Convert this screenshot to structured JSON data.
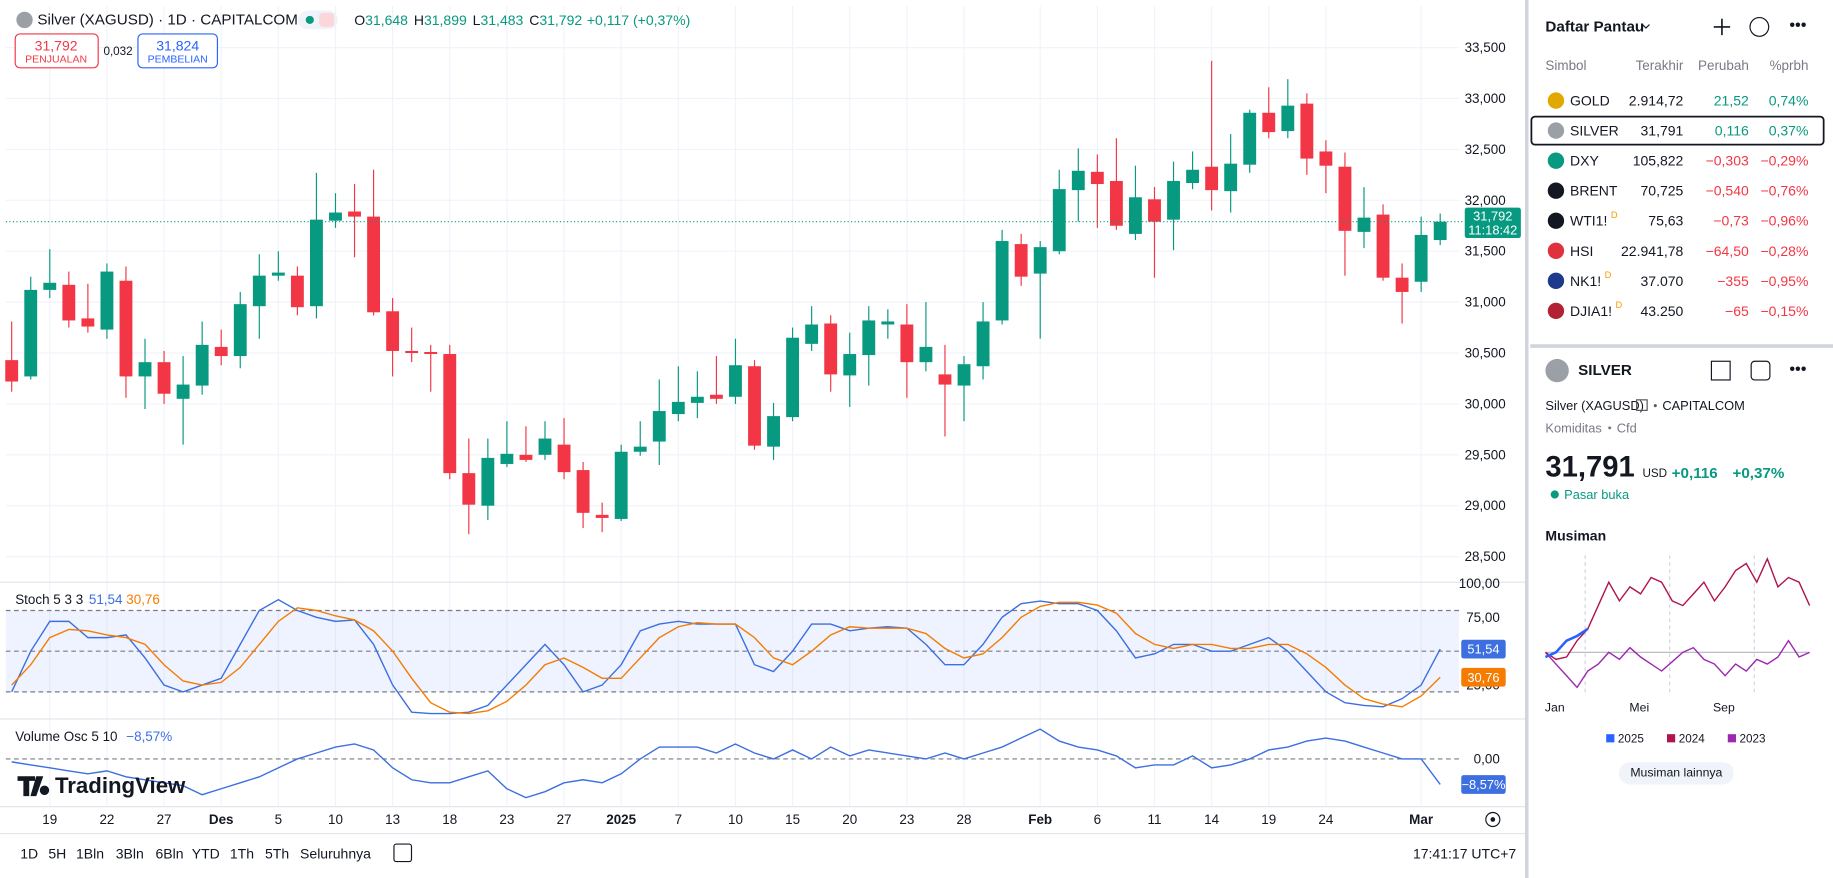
{
  "header": {
    "title": "Silver (XAGUSD) · 1D · CAPITALCOM",
    "ohlc": [
      {
        "label": "O",
        "value": "31,648"
      },
      {
        "label": "H",
        "value": "31,899"
      },
      {
        "label": "L",
        "value": "31,483"
      },
      {
        "label": "C",
        "value": "31,792"
      }
    ],
    "change": "+0,117 (+0,37%)",
    "sell": {
      "price": "31,792",
      "label": "PENJUALAN"
    },
    "spread": "0,032",
    "buy": {
      "price": "31,824",
      "label": "PEMBELIAN"
    },
    "countdown": "11:18:42"
  },
  "chart_data": [
    {
      "type": "candlestick",
      "up_color": "#089981",
      "down_color": "#f23645",
      "grid": true,
      "categories": [
        null,
        null,
        "19",
        null,
        null,
        "22",
        null,
        null,
        "27",
        null,
        null,
        "Des",
        null,
        null,
        "5",
        null,
        null,
        "10",
        null,
        null,
        "13",
        null,
        null,
        "18",
        null,
        null,
        "23",
        null,
        null,
        "27",
        null,
        null,
        "2025",
        null,
        null,
        "7",
        null,
        null,
        "10",
        null,
        null,
        "15",
        null,
        null,
        "20",
        null,
        null,
        "23",
        null,
        null,
        "28",
        null,
        null,
        null,
        "Feb",
        null,
        null,
        "6",
        null,
        null,
        "11",
        null,
        null,
        "14",
        null,
        null,
        "19",
        null,
        null,
        "24",
        null,
        null,
        null,
        null,
        "Mar",
        null
      ],
      "open": [
        30.43,
        30.27,
        31.12,
        31.17,
        30.84,
        30.73,
        31.21,
        30.27,
        30.41,
        30.05,
        30.18,
        30.56,
        30.47,
        30.96,
        31.26,
        31.26,
        30.96,
        31.8,
        31.89,
        31.84,
        30.91,
        30.52,
        30.51,
        30.49,
        29.32,
        29.0,
        29.41,
        29.5,
        29.5,
        29.6,
        29.35,
        28.91,
        28.87,
        29.53,
        29.63,
        29.9,
        30.01,
        30.09,
        30.07,
        30.37,
        29.58,
        29.87,
        30.59,
        30.79,
        30.28,
        30.48,
        30.78,
        30.78,
        30.41,
        30.29,
        30.18,
        30.37,
        30.82,
        31.57,
        31.28,
        31.5,
        32.1,
        32.28,
        32.19,
        31.67,
        32.01,
        31.81,
        32.17,
        32.33,
        32.09,
        32.35,
        32.86,
        32.68,
        32.95,
        32.48,
        32.33,
        31.69,
        31.86,
        31.24,
        31.2,
        31.61
      ],
      "high": [
        30.81,
        31.25,
        31.52,
        31.3,
        31.18,
        31.38,
        31.35,
        30.64,
        30.52,
        30.47,
        30.81,
        30.73,
        31.1,
        31.47,
        31.5,
        31.35,
        32.27,
        32.07,
        32.16,
        32.3,
        31.04,
        30.75,
        30.58,
        30.58,
        29.66,
        29.66,
        29.83,
        29.78,
        29.83,
        29.86,
        29.43,
        29.03,
        29.6,
        29.83,
        30.24,
        30.37,
        30.32,
        30.47,
        30.64,
        30.43,
        30.01,
        30.75,
        30.96,
        30.87,
        30.7,
        30.96,
        30.93,
        30.98,
        31.0,
        30.58,
        30.47,
        31.0,
        31.71,
        31.67,
        31.6,
        32.3,
        32.51,
        32.45,
        32.61,
        32.34,
        32.13,
        32.38,
        32.48,
        33.37,
        32.65,
        32.89,
        33.11,
        33.19,
        33.05,
        32.59,
        32.47,
        32.13,
        31.96,
        31.38,
        31.84,
        31.87
      ],
      "low": [
        30.12,
        30.24,
        31.04,
        30.75,
        30.7,
        30.64,
        30.06,
        29.95,
        30.0,
        29.6,
        30.09,
        30.38,
        30.35,
        30.64,
        31.21,
        30.87,
        30.84,
        31.73,
        31.44,
        30.87,
        30.27,
        30.41,
        30.12,
        29.26,
        28.72,
        28.86,
        29.38,
        29.43,
        29.45,
        29.26,
        28.78,
        28.74,
        28.85,
        29.49,
        29.4,
        29.83,
        29.86,
        30.0,
        30.0,
        29.55,
        29.45,
        29.83,
        30.52,
        30.12,
        29.97,
        30.18,
        30.64,
        30.06,
        30.32,
        29.68,
        29.83,
        30.24,
        30.78,
        31.16,
        30.64,
        31.47,
        31.79,
        31.73,
        31.71,
        31.61,
        31.24,
        31.51,
        32.11,
        31.9,
        31.88,
        32.27,
        32.61,
        32.61,
        32.25,
        32.07,
        31.26,
        31.53,
        31.21,
        30.79,
        31.1,
        31.56
      ],
      "close": [
        30.22,
        31.12,
        31.19,
        30.82,
        30.76,
        31.3,
        30.27,
        30.41,
        30.1,
        30.19,
        30.58,
        30.47,
        30.98,
        31.26,
        31.29,
        30.95,
        31.81,
        31.88,
        31.84,
        30.9,
        30.52,
        30.5,
        30.49,
        29.32,
        29.01,
        29.47,
        29.51,
        29.45,
        29.66,
        29.33,
        28.93,
        28.88,
        29.53,
        29.58,
        29.93,
        30.02,
        30.07,
        30.05,
        30.38,
        29.59,
        29.88,
        30.65,
        30.78,
        30.29,
        30.49,
        30.82,
        30.81,
        30.41,
        30.56,
        30.19,
        30.39,
        30.81,
        31.6,
        31.25,
        31.54,
        32.11,
        32.29,
        32.16,
        31.75,
        32.03,
        31.79,
        32.19,
        32.3,
        32.1,
        32.36,
        32.86,
        32.67,
        32.93,
        32.41,
        32.34,
        31.7,
        31.83,
        31.24,
        31.1,
        31.66,
        31.79
      ],
      "ylim": [
        28.26,
        33.91
      ],
      "yticks": [
        {
          "value": 28.5,
          "label": "28,500"
        },
        {
          "value": 29,
          "label": "29,000"
        },
        {
          "value": 29.5,
          "label": "29,500"
        },
        {
          "value": 30,
          "label": "30,000"
        },
        {
          "value": 30.5,
          "label": "30,500"
        },
        {
          "value": 31,
          "label": "31,000"
        },
        {
          "value": 31.5,
          "label": "31,500"
        },
        {
          "value": 32,
          "label": "32,000"
        },
        {
          "value": 32.5,
          "label": "32,500"
        },
        {
          "value": 33,
          "label": "33,000"
        },
        {
          "value": 33.5,
          "label": "33,500"
        }
      ]
    },
    {
      "type": "line",
      "title": "Stoch 5 3 3",
      "band_color": "#2962ff",
      "levels": [
        80,
        50,
        20
      ],
      "series": [
        {
          "color": "#3d6fe0",
          "last_label": "51,54",
          "values": [
            20,
            50,
            72,
            72,
            60,
            60,
            62,
            45,
            25,
            20,
            25,
            30,
            55,
            80,
            88,
            80,
            75,
            72,
            73,
            55,
            25,
            5,
            4,
            4,
            5,
            10,
            25,
            40,
            55,
            40,
            20,
            25,
            40,
            65,
            70,
            72,
            70,
            70,
            70,
            40,
            35,
            50,
            70,
            70,
            65,
            67,
            68,
            67,
            55,
            40,
            40,
            55,
            75,
            85,
            87,
            85,
            85,
            80,
            65,
            45,
            48,
            55,
            55,
            50,
            50,
            55,
            60,
            50,
            35,
            20,
            12,
            10,
            9,
            15,
            25,
            51.54
          ]
        },
        {
          "color": "#f57c00",
          "last_label": "30,76",
          "values": [
            25,
            40,
            60,
            66,
            65,
            62,
            60,
            55,
            40,
            28,
            25,
            27,
            38,
            55,
            72,
            82,
            80,
            76,
            73,
            65,
            50,
            30,
            12,
            5,
            4,
            6,
            13,
            25,
            40,
            45,
            38,
            30,
            30,
            45,
            60,
            68,
            71,
            70,
            70,
            60,
            45,
            40,
            50,
            62,
            68,
            67,
            67,
            67,
            63,
            52,
            45,
            48,
            60,
            75,
            83,
            86,
            86,
            84,
            78,
            63,
            55,
            52,
            55,
            55,
            52,
            52,
            55,
            55,
            48,
            38,
            25,
            15,
            11,
            9,
            17,
            30.76
          ]
        }
      ],
      "ylim": [
        0,
        100
      ],
      "yticks": [
        {
          "value": 100,
          "label": "100,00"
        },
        {
          "value": 75,
          "label": "75,00"
        },
        {
          "value": 25,
          "label": "25,00"
        }
      ]
    },
    {
      "type": "line",
      "title": "Volume Osc 5 10",
      "series": [
        {
          "color": "#3d6fe0",
          "last_label": "−8,57%",
          "values": [
            -1,
            -2,
            -3,
            -4,
            -5,
            -4,
            -6,
            -7,
            -8,
            -9,
            -12,
            -10,
            -8,
            -6,
            -3,
            0,
            2,
            4,
            5,
            3,
            -3,
            -7,
            -8,
            -8,
            -6,
            -4,
            -10,
            -13,
            -11,
            -8,
            -7,
            -8,
            -5,
            0,
            4,
            4,
            4,
            2,
            5,
            2,
            0,
            3,
            0,
            4,
            1,
            3,
            2,
            1,
            0,
            2,
            0,
            2,
            4,
            7,
            10,
            6,
            4,
            3,
            1,
            -3,
            -2,
            -2,
            1,
            -3,
            -2,
            0,
            3,
            4,
            6,
            7,
            6,
            4,
            2,
            0,
            0,
            -8.57
          ]
        }
      ],
      "ylim": [
        -16,
        13
      ],
      "yticks": [
        {
          "value": 0,
          "label": "0,00"
        }
      ]
    },
    {
      "type": "line",
      "title": "Musiman",
      "categories": [
        "Jan",
        null,
        null,
        null,
        null,
        null,
        null,
        null,
        "Mei",
        null,
        null,
        null,
        null,
        null,
        null,
        null,
        "Sep",
        null,
        null,
        null,
        null,
        null,
        null,
        null,
        null,
        null
      ],
      "series": [
        {
          "name": "2025",
          "color": "#2962ff",
          "values": [
            -2,
            0,
            5,
            7,
            10,
            null,
            null,
            null,
            null,
            null,
            null,
            null,
            null,
            null,
            null,
            null,
            null,
            null,
            null,
            null,
            null,
            null,
            null,
            null,
            null,
            null
          ]
        },
        {
          "name": "2024",
          "color": "#b0134f",
          "values": [
            0,
            -3,
            -2,
            5,
            10,
            20,
            30,
            22,
            28,
            25,
            32,
            30,
            22,
            20,
            25,
            30,
            22,
            28,
            35,
            38,
            30,
            40,
            28,
            32,
            30,
            20
          ]
        },
        {
          "name": "2023",
          "color": "#9c27b0",
          "values": [
            0,
            -5,
            -10,
            -15,
            -8,
            -5,
            0,
            -3,
            2,
            -2,
            -5,
            -8,
            -4,
            0,
            2,
            -3,
            -5,
            -10,
            -5,
            -8,
            -3,
            -5,
            -2,
            5,
            -2,
            0
          ]
        }
      ],
      "ylim": [
        -18.5,
        41.5
      ]
    }
  ],
  "watermark": "TradingView",
  "toolbar": {
    "ranges": [
      "1D",
      "5H",
      "1Bln",
      "3Bln",
      "6Bln",
      "YTD",
      "1Th",
      "5Th",
      "Seluruhnya"
    ],
    "clock": "17:41:17 UTC+7"
  },
  "watchlist": {
    "title": "Daftar Pantau",
    "columns": [
      "Simbol",
      "Terakhir",
      "Perubah",
      "%prbh"
    ],
    "rows": [
      {
        "symbol": "GOLD",
        "last": "2.914,72",
        "change": "21,52",
        "percent": "0,74%",
        "icon_color": "#e0a800"
      },
      {
        "symbol": "SILVER",
        "last": "31,791",
        "change": "0,116",
        "percent": "0,37%",
        "icon_color": "#9aa0a6"
      },
      {
        "symbol": "DXY",
        "last": "105,822",
        "change": "−0,303",
        "percent": "−0,29%",
        "icon_color": "#089981"
      },
      {
        "symbol": "BRENT",
        "last": "70,725",
        "change": "−0,540",
        "percent": "−0,76%",
        "icon_color": "#131722"
      },
      {
        "symbol": "WTI1!",
        "flag": "D",
        "last": "75,63",
        "change": "−0,73",
        "percent": "−0,96%",
        "icon_color": "#131722"
      },
      {
        "symbol": "HSI",
        "last": "22.941,78",
        "change": "−64,50",
        "percent": "−0,28%",
        "icon_color": "#e0323c"
      },
      {
        "symbol": "NK1!",
        "flag": "D",
        "last": "37.070",
        "change": "−355",
        "percent": "−0,95%",
        "icon_color": "#1e3a8a"
      },
      {
        "symbol": "DJIA1!",
        "flag": "D",
        "last": "43.250",
        "change": "−65",
        "percent": "−0,15%",
        "icon_color": "#b22234"
      }
    ]
  },
  "details": {
    "symbol": "SILVER",
    "name": "Silver (XAGUSD)",
    "exchange": "CAPITALCOM",
    "category": "Komiditas",
    "kind": "Cfd",
    "price": "31,791",
    "currency": "USD",
    "change": "+0,116",
    "change_pct": "+0,37%",
    "status": "Pasar buka",
    "more": "Musiman lainnya"
  }
}
